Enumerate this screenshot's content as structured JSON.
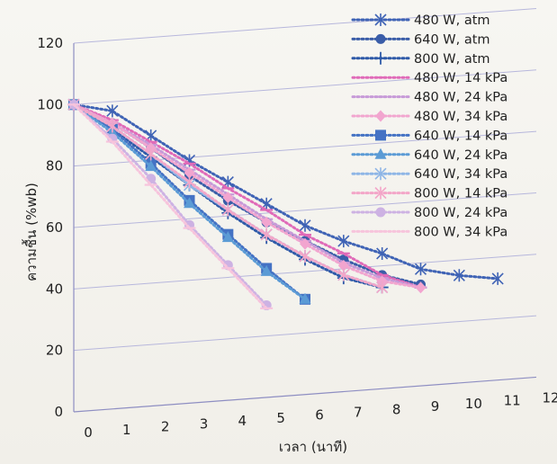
{
  "chart_data": {
    "type": "line",
    "title": "",
    "xlabel": "เวลา (นาที)",
    "ylabel": "ความชื้น (%wb)",
    "xlim": [
      0,
      12
    ],
    "ylim": [
      0,
      120
    ],
    "x_ticks": [
      "0",
      "1",
      "2",
      "3",
      "4",
      "5",
      "6",
      "7",
      "8",
      "9",
      "10",
      "11",
      "12"
    ],
    "y_ticks": [
      "0",
      "20",
      "40",
      "60",
      "80",
      "100",
      "120"
    ],
    "grid": "horizontal",
    "legend_position": "top-right",
    "series": [
      {
        "name": "480 W, atm",
        "color": "#3f63b5",
        "marker": "star",
        "x": [
          0,
          1,
          2,
          3,
          4,
          5,
          6,
          7,
          8,
          9,
          10,
          11
        ],
        "y": [
          100,
          97,
          88,
          79,
          71,
          63,
          55,
          49,
          44,
          38,
          35,
          33
        ]
      },
      {
        "name": "640 W, atm",
        "color": "#3a5da8",
        "marker": "circle",
        "x": [
          0,
          1,
          2,
          3,
          4,
          5,
          6,
          7,
          8,
          9
        ],
        "y": [
          100,
          93,
          84,
          74,
          65,
          57,
          50,
          43,
          37,
          33
        ]
      },
      {
        "name": "800 W, atm",
        "color": "#2f5aa8",
        "marker": "plus",
        "x": [
          0,
          1,
          2,
          3,
          4,
          5,
          6,
          7,
          8
        ],
        "y": [
          100,
          91,
          81,
          71,
          61,
          52,
          44,
          37,
          33
        ]
      },
      {
        "name": "480 W, 14 kPa",
        "color": "#e06ab8",
        "marker": "dash",
        "x": [
          0,
          1,
          2,
          3,
          4,
          5,
          6,
          7,
          8,
          9
        ],
        "y": [
          100,
          94,
          86,
          78,
          69,
          61,
          52,
          45,
          37,
          32
        ]
      },
      {
        "name": "480 W, 24 kPa",
        "color": "#c79ad8",
        "marker": "dash",
        "x": [
          0,
          1,
          2,
          3,
          4,
          5,
          6,
          7,
          8,
          9
        ],
        "y": [
          100,
          93,
          85,
          76,
          67,
          58,
          50,
          42,
          36,
          32
        ]
      },
      {
        "name": "480 W, 34 kPa",
        "color": "#f2a5cf",
        "marker": "diamond",
        "x": [
          0,
          1,
          2,
          3,
          4,
          5,
          6,
          7,
          8,
          9
        ],
        "y": [
          100,
          93,
          84,
          75,
          66,
          57,
          49,
          41,
          35,
          32
        ]
      },
      {
        "name": "640 W, 14 kPa",
        "color": "#4472c4",
        "marker": "square",
        "x": [
          0,
          1,
          2,
          3,
          4,
          5,
          6
        ],
        "y": [
          100,
          91,
          79,
          66,
          54,
          42,
          31
        ]
      },
      {
        "name": "640 W, 24 kPa",
        "color": "#5b9bd5",
        "marker": "triangle",
        "x": [
          0,
          1,
          2,
          3,
          4,
          5,
          6
        ],
        "y": [
          100,
          90,
          78,
          65,
          53,
          41,
          31
        ]
      },
      {
        "name": "640 W, 34 kPa",
        "color": "#8fb6e6",
        "marker": "star",
        "x": [
          0,
          1,
          2,
          3,
          4,
          5,
          6,
          7,
          8
        ],
        "y": [
          100,
          92,
          82,
          71,
          62,
          53,
          45,
          38,
          33
        ]
      },
      {
        "name": "800 W, 14 kPa",
        "color": "#f3a6c8",
        "marker": "star",
        "x": [
          0,
          1,
          2,
          3,
          4,
          5,
          6,
          7,
          8
        ],
        "y": [
          100,
          92,
          82,
          72,
          62,
          53,
          45,
          38,
          33
        ]
      },
      {
        "name": "800 W, 24 kPa",
        "color": "#cdb2e3",
        "marker": "circle",
        "x": [
          0,
          1,
          2,
          3,
          4,
          5
        ],
        "y": [
          100,
          88,
          74,
          58,
          44,
          30
        ]
      },
      {
        "name": "800 W, 34 kPa",
        "color": "#f7c4dc",
        "marker": "dash",
        "x": [
          0,
          1,
          2,
          3,
          4,
          5
        ],
        "y": [
          100,
          87,
          72,
          57,
          43,
          29
        ]
      }
    ]
  }
}
